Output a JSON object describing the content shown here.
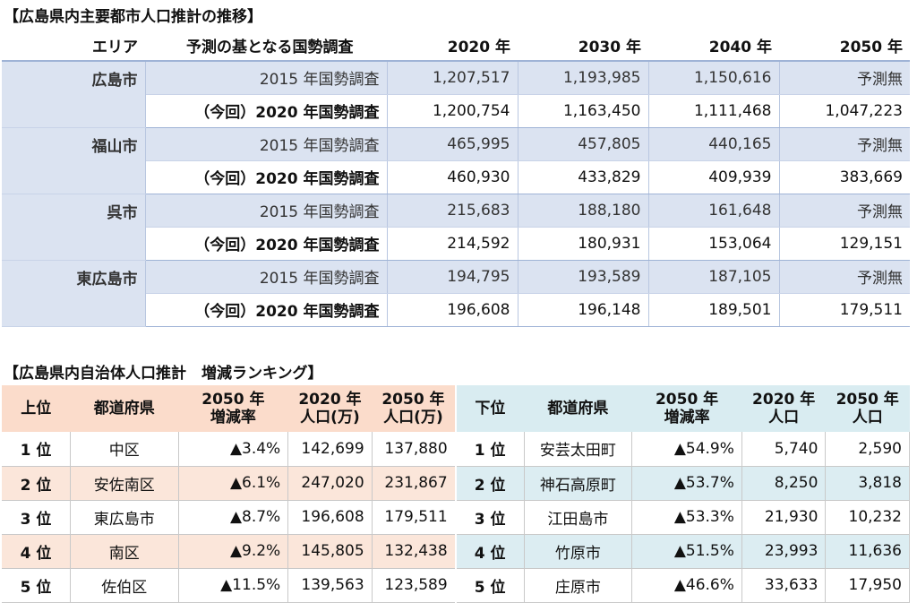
{
  "table1": {
    "title": "【広島県内主要都市人口推計の推移】",
    "headers": {
      "area": "エリア",
      "basis": "予測の基となる国勢調査",
      "y2020": "2020 年",
      "y2030": "2030 年",
      "y2040": "2040 年",
      "y2050": "2050 年"
    },
    "cities": [
      {
        "name": "広島市",
        "rows": [
          {
            "basis": "2015 年国勢調査",
            "v2020": "1,207,517",
            "v2030": "1,193,985",
            "v2040": "1,150,616",
            "v2050": "予測無"
          },
          {
            "basis": "（今回）2020 年国勢調査",
            "v2020": "1,200,754",
            "v2030": "1,163,450",
            "v2040": "1,111,468",
            "v2050": "1,047,223"
          }
        ]
      },
      {
        "name": "福山市",
        "rows": [
          {
            "basis": "2015 年国勢調査",
            "v2020": "465,995",
            "v2030": "457,805",
            "v2040": "440,165",
            "v2050": "予測無"
          },
          {
            "basis": "（今回）2020 年国勢調査",
            "v2020": "460,930",
            "v2030": "433,829",
            "v2040": "409,939",
            "v2050": "383,669"
          }
        ]
      },
      {
        "name": "呉市",
        "rows": [
          {
            "basis": "2015 年国勢調査",
            "v2020": "215,683",
            "v2030": "188,180",
            "v2040": "161,648",
            "v2050": "予測無"
          },
          {
            "basis": "（今回）2020 年国勢調査",
            "v2020": "214,592",
            "v2030": "180,931",
            "v2040": "153,064",
            "v2050": "129,151"
          }
        ]
      },
      {
        "name": "東広島市",
        "rows": [
          {
            "basis": "2015 年国勢調査",
            "v2020": "194,795",
            "v2030": "193,589",
            "v2040": "187,105",
            "v2050": "予測無"
          },
          {
            "basis": "（今回）2020 年国勢調査",
            "v2020": "196,608",
            "v2030": "196,148",
            "v2040": "189,501",
            "v2050": "179,511"
          }
        ]
      }
    ]
  },
  "table2": {
    "title": "【広島県内自治体人口推計　増減ランキング】",
    "upper_headers": {
      "rank": "上位",
      "pref": "都道府県",
      "rate1": "2050 年",
      "rate2": "増減率",
      "pop2020a": "2020 年",
      "pop2020b": "人口(万)",
      "pop2050a": "2050 年",
      "pop2050b": "人口(万)"
    },
    "lower_headers": {
      "rank": "下位",
      "pref": "都道府県",
      "rate1": "2050 年",
      "rate2": "増減率",
      "pop2020a": "2020 年",
      "pop2020b": "人口",
      "pop2050a": "2050 年",
      "pop2050b": "人口"
    },
    "rows": [
      {
        "u_rank": "1 位",
        "u_name": "中区",
        "u_rate": "▲3.4%",
        "u_2020": "142,699",
        "u_2050": "137,880",
        "l_rank": "1 位",
        "l_name": "安芸太田町",
        "l_rate": "▲54.9%",
        "l_2020": "5,740",
        "l_2050": "2,590"
      },
      {
        "u_rank": "2 位",
        "u_name": "安佐南区",
        "u_rate": "▲6.1%",
        "u_2020": "247,020",
        "u_2050": "231,867",
        "l_rank": "2 位",
        "l_name": "神石高原町",
        "l_rate": "▲53.7%",
        "l_2020": "8,250",
        "l_2050": "3,818"
      },
      {
        "u_rank": "3 位",
        "u_name": "東広島市",
        "u_rate": "▲8.7%",
        "u_2020": "196,608",
        "u_2050": "179,511",
        "l_rank": "3 位",
        "l_name": "江田島市",
        "l_rate": "▲53.3%",
        "l_2020": "21,930",
        "l_2050": "10,232"
      },
      {
        "u_rank": "4 位",
        "u_name": "南区",
        "u_rate": "▲9.2%",
        "u_2020": "145,805",
        "u_2050": "132,438",
        "l_rank": "4 位",
        "l_name": "竹原市",
        "l_rate": "▲51.5%",
        "l_2020": "23,993",
        "l_2050": "11,636"
      },
      {
        "u_rank": "5 位",
        "u_name": "佐伯区",
        "u_rate": "▲11.5%",
        "u_2020": "139,563",
        "u_2050": "123,589",
        "l_rank": "5 位",
        "l_name": "庄原市",
        "l_rate": "▲46.6%",
        "l_2020": "33,633",
        "l_2050": "17,950"
      }
    ]
  },
  "colors": {
    "table1_shade": "#dbe3f1",
    "upper_header_bg": "#fbdccb",
    "lower_header_bg": "#d9ecf1"
  }
}
